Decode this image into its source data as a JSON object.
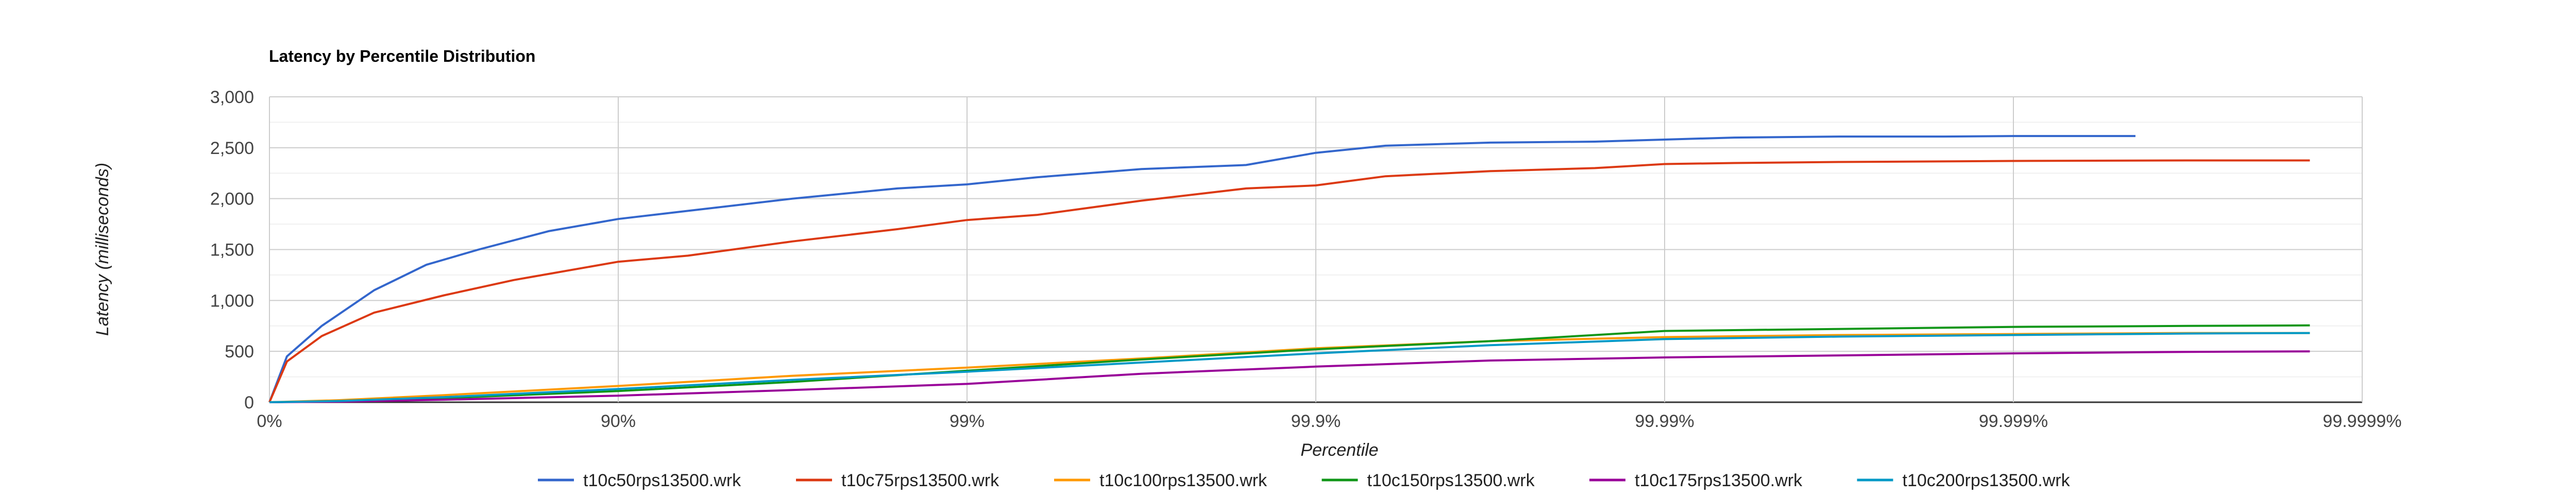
{
  "chart_data": {
    "type": "line",
    "title": "Latency by Percentile Distribution",
    "xlabel": "Percentile",
    "ylabel": "Latency (milliseconds)",
    "x_scale": "percentile-log",
    "x_tick_labels": [
      "0%",
      "90%",
      "99%",
      "99.9%",
      "99.99%",
      "99.999%",
      "99.9999%"
    ],
    "x_tick_positions": [
      0,
      1,
      2,
      3,
      4,
      5,
      6
    ],
    "y_tick_labels": [
      "0",
      "500",
      "1,000",
      "1,500",
      "2,000",
      "2,500",
      "3,000"
    ],
    "y_tick_values": [
      0,
      500,
      1000,
      1500,
      2000,
      2500,
      3000
    ],
    "ylim": [
      0,
      3000
    ],
    "xlim": [
      0,
      6
    ],
    "grid": true,
    "legend_position": "bottom",
    "series": [
      {
        "name": "t10c50rps13500.wrk",
        "color": "#3366cc",
        "x": [
          0,
          0.05,
          0.15,
          0.3,
          0.45,
          0.6,
          0.8,
          1.0,
          1.2,
          1.5,
          1.8,
          2.0,
          2.2,
          2.5,
          2.8,
          3.0,
          3.2,
          3.5,
          3.8,
          4.0,
          4.2,
          4.5,
          4.8,
          5.0,
          5.2,
          5.35
        ],
        "y": [
          0,
          450,
          750,
          1100,
          1350,
          1500,
          1680,
          1800,
          1880,
          2000,
          2100,
          2140,
          2210,
          2290,
          2330,
          2450,
          2520,
          2550,
          2560,
          2580,
          2600,
          2610,
          2610,
          2615,
          2615,
          2615
        ]
      },
      {
        "name": "t10c75rps13500.wrk",
        "color": "#dc3912",
        "x": [
          0,
          0.05,
          0.15,
          0.3,
          0.5,
          0.7,
          1.0,
          1.2,
          1.5,
          1.8,
          2.0,
          2.2,
          2.5,
          2.8,
          3.0,
          3.2,
          3.5,
          3.8,
          4.0,
          4.2,
          4.5,
          5.0,
          5.5,
          5.85
        ],
        "y": [
          0,
          400,
          650,
          880,
          1050,
          1200,
          1380,
          1440,
          1580,
          1700,
          1790,
          1840,
          1980,
          2100,
          2130,
          2220,
          2270,
          2300,
          2340,
          2350,
          2360,
          2370,
          2375,
          2375
        ]
      },
      {
        "name": "t10c100rps13500.wrk",
        "color": "#ff9900",
        "x": [
          0,
          0.2,
          0.5,
          1.0,
          1.5,
          2.0,
          2.5,
          3.0,
          3.5,
          4.0,
          4.5,
          5.0,
          5.5,
          5.85
        ],
        "y": [
          0,
          20,
          70,
          160,
          260,
          340,
          430,
          530,
          600,
          640,
          660,
          670,
          680,
          680
        ]
      },
      {
        "name": "t10c150rps13500.wrk",
        "color": "#109618",
        "x": [
          0,
          0.2,
          0.5,
          1.0,
          1.5,
          2.0,
          2.5,
          3.0,
          3.5,
          3.8,
          4.0,
          4.5,
          5.0,
          5.5,
          5.85
        ],
        "y": [
          0,
          10,
          40,
          110,
          200,
          310,
          420,
          520,
          600,
          660,
          700,
          720,
          740,
          750,
          755
        ]
      },
      {
        "name": "t10c175rps13500.wrk",
        "color": "#990099",
        "x": [
          0,
          0.2,
          0.5,
          1.0,
          1.5,
          2.0,
          2.5,
          3.0,
          3.5,
          4.0,
          4.5,
          5.0,
          5.5,
          5.85
        ],
        "y": [
          0,
          5,
          25,
          65,
          120,
          180,
          280,
          350,
          410,
          440,
          460,
          480,
          495,
          500
        ]
      },
      {
        "name": "t10c200rps13500.wrk",
        "color": "#0099c6",
        "x": [
          0,
          0.2,
          0.5,
          1.0,
          1.5,
          2.0,
          2.5,
          3.0,
          3.5,
          4.0,
          4.5,
          5.0,
          5.5,
          5.85
        ],
        "y": [
          0,
          12,
          50,
          130,
          220,
          300,
          390,
          480,
          560,
          620,
          645,
          660,
          675,
          680
        ]
      }
    ]
  }
}
